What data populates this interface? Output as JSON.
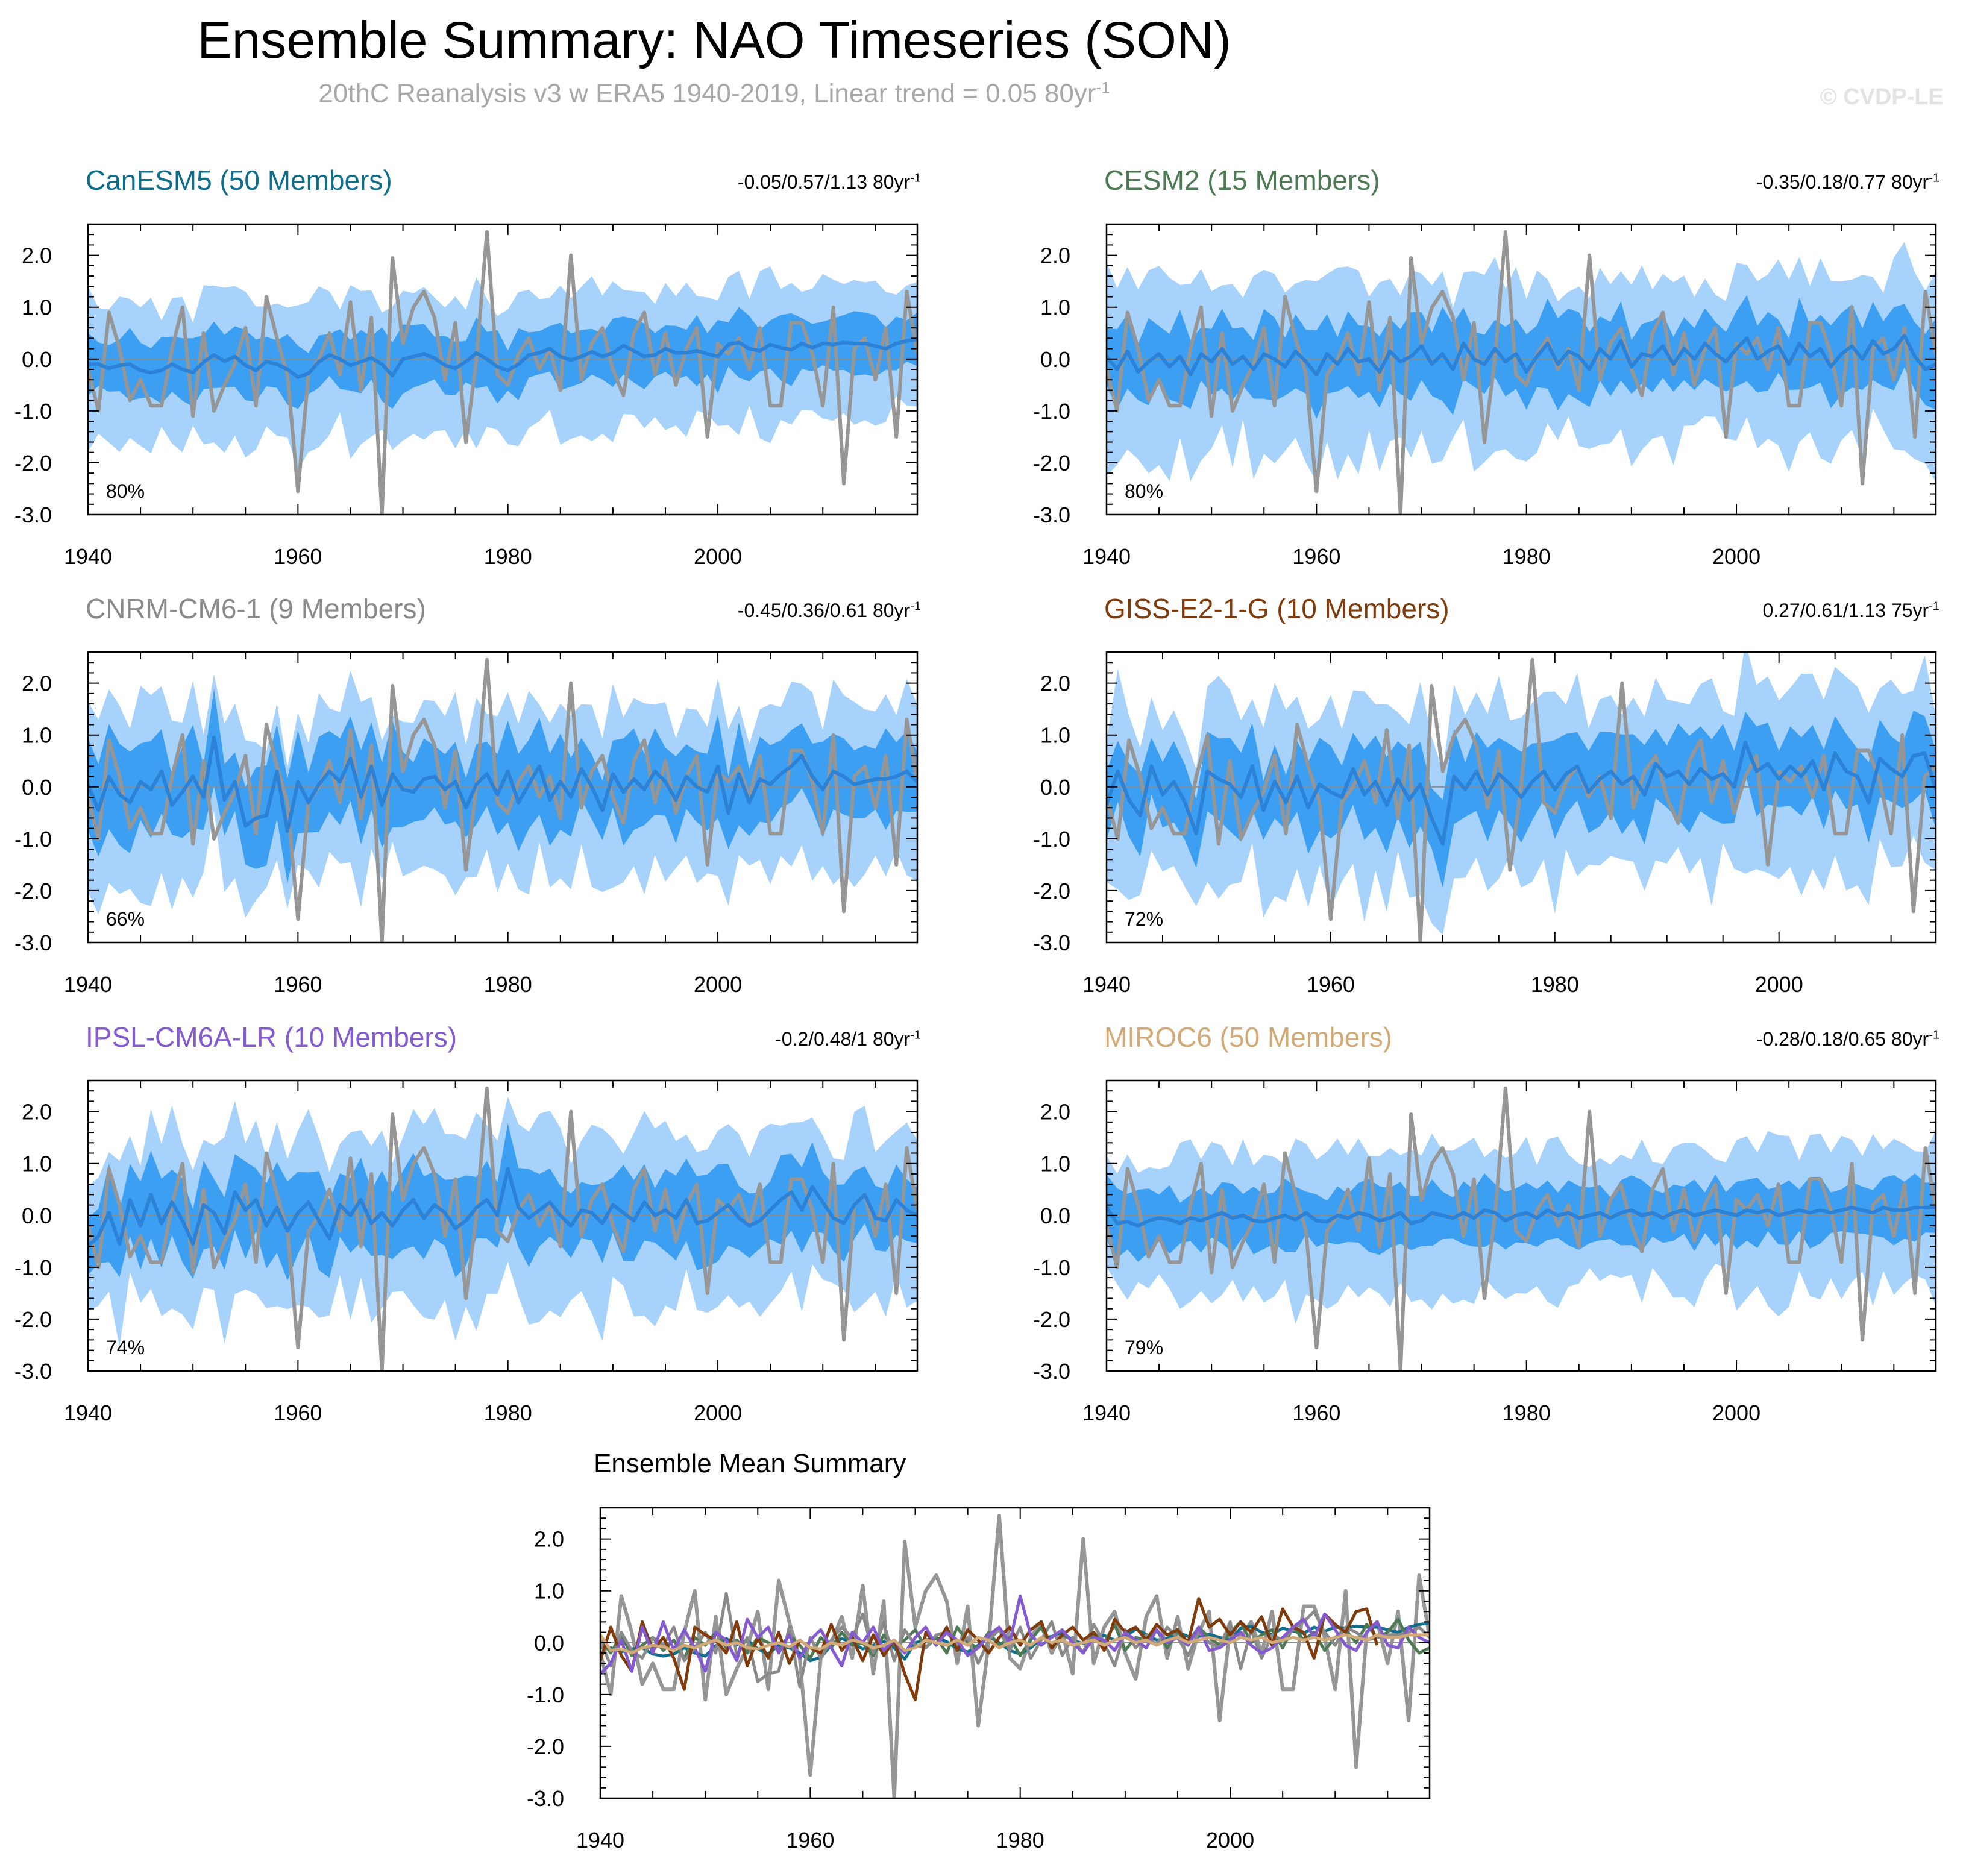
{
  "title": "Ensemble Summary: NAO Timeseries (SON)",
  "subtitle_main": "20thC Reanalysis v3 w ERA5 1940-2019, Linear trend = 0.05 80yr",
  "subtitle_exp": "-1",
  "watermark": "© CVDP-LE",
  "colors": {
    "outer_band": "#a6d2fb",
    "inner_band": "#3d9ff1",
    "mean_line": "#2c82d6",
    "obs_line": "#969696",
    "zero_line": "#8c8c8c"
  },
  "chart_data": [
    {
      "type": "line",
      "title": "CanESM5 (50 Members)",
      "title_color": "#116e8a",
      "stats": "-0.05/0.57/1.13 80yr",
      "stats_exp": "-1",
      "percent_label": "80%",
      "xlim": [
        1940,
        2019
      ],
      "ylim": [
        -3.0,
        2.6
      ],
      "xticks": [
        "1940",
        "1960",
        "1980",
        "2000"
      ],
      "yticks": [
        "2.0",
        "1.0",
        "0.0",
        "-1.0",
        "-2.0",
        "-3.0"
      ],
      "band_amp": [
        0.55,
        1.25
      ],
      "seed": 11,
      "mean_values": [
        -0.1,
        -0.1,
        -0.18,
        -0.12,
        -0.1,
        -0.22,
        -0.26,
        -0.22,
        -0.1,
        -0.2,
        -0.26,
        -0.06,
        0.08,
        -0.04,
        0.05,
        -0.12,
        -0.22,
        -0.05,
        -0.1,
        -0.2,
        -0.35,
        -0.28,
        -0.05,
        0.08,
        0.0,
        -0.12,
        -0.05,
        0.02,
        -0.1,
        -0.32,
        0.0,
        0.05,
        0.1,
        0.02,
        -0.12,
        -0.18,
        -0.05,
        0.12,
        0.0,
        -0.15,
        -0.22,
        -0.1,
        0.08,
        0.12,
        0.2,
        0.05,
        -0.02,
        0.05,
        0.14,
        0.05,
        0.12,
        0.26,
        0.16,
        0.05,
        0.08,
        0.2,
        0.12,
        0.12,
        0.16,
        0.1,
        0.05,
        0.28,
        0.32,
        0.2,
        0.16,
        0.28,
        0.22,
        0.18,
        0.3,
        0.22,
        0.3,
        0.28,
        0.32,
        0.3,
        0.3,
        0.25,
        0.2,
        0.3,
        0.35,
        0.38
      ]
    },
    {
      "type": "line",
      "title": "CESM2 (15 Members)",
      "title_color": "#4d7a55",
      "stats": "-0.35/0.18/0.77 80yr",
      "stats_exp": "-1",
      "percent_label": "80%",
      "xlim": [
        1940,
        2019
      ],
      "ylim": [
        -3.0,
        2.6
      ],
      "xticks": [
        "1940",
        "1960",
        "1980",
        "2000"
      ],
      "yticks": [
        "2.0",
        "1.0",
        "0.0",
        "-1.0",
        "-2.0",
        "-3.0"
      ],
      "band_amp": [
        0.7,
        1.5
      ],
      "seed": 23,
      "mean_values": [
        0.05,
        -0.2,
        0.15,
        -0.25,
        -0.05,
        0.1,
        -0.15,
        0.05,
        -0.3,
        0.1,
        -0.05,
        0.2,
        -0.1,
        0.05,
        -0.2,
        0.1,
        0.0,
        -0.15,
        0.15,
        -0.05,
        -0.3,
        0.1,
        -0.1,
        0.2,
        -0.05,
        0.0,
        -0.25,
        0.15,
        -0.05,
        0.05,
        0.25,
        -0.1,
        0.1,
        -0.2,
        0.3,
        0.0,
        -0.1,
        0.2,
        -0.05,
        0.1,
        -0.25,
        0.05,
        0.3,
        -0.1,
        0.15,
        0.05,
        -0.2,
        0.2,
        0.0,
        0.35,
        -0.15,
        0.1,
        0.05,
        0.25,
        -0.1,
        0.2,
        0.0,
        0.3,
        0.1,
        -0.05,
        0.2,
        0.4,
        0.0,
        0.15,
        0.25,
        -0.1,
        0.3,
        0.05,
        0.2,
        -0.15,
        0.1,
        0.25,
        0.0,
        0.35,
        0.1,
        0.2,
        0.45,
        0.05,
        -0.2,
        -0.1
      ]
    },
    {
      "type": "line",
      "title": "CNRM-CM6-1 (9 Members)",
      "title_color": "#8a8a8a",
      "stats": "-0.45/0.36/0.61 80yr",
      "stats_exp": "-1",
      "percent_label": "66%",
      "xlim": [
        1940,
        2019
      ],
      "ylim": [
        -3.0,
        2.6
      ],
      "xticks": [
        "1940",
        "1960",
        "1980",
        "2000"
      ],
      "yticks": [
        "2.0",
        "1.0",
        "0.0",
        "-1.0",
        "-2.0",
        "-3.0"
      ],
      "band_amp": [
        0.8,
        1.5
      ],
      "seed": 37,
      "mean_values": [
        0.05,
        -0.45,
        0.2,
        -0.15,
        -0.3,
        0.1,
        -0.05,
        0.3,
        -0.35,
        -0.1,
        0.2,
        -0.2,
        0.95,
        -0.25,
        0.1,
        -0.75,
        -0.6,
        -0.55,
        0.3,
        -0.85,
        0.1,
        -0.3,
        0.05,
        0.3,
        0.1,
        0.55,
        -0.2,
        0.4,
        -0.35,
        0.25,
        -0.05,
        -0.1,
        0.15,
        0.2,
        -0.05,
        0.1,
        -0.4,
        0.05,
        0.25,
        -0.15,
        0.3,
        -0.3,
        0.05,
        0.4,
        -0.25,
        0.1,
        -0.2,
        0.35,
        0.0,
        -0.45,
        0.25,
        -0.1,
        0.15,
        -0.05,
        0.3,
        0.1,
        -0.25,
        0.2,
        0.0,
        -0.1,
        0.4,
        -0.5,
        0.25,
        -0.3,
        0.15,
        0.05,
        0.25,
        0.4,
        0.6,
        0.2,
        -0.05,
        0.3,
        0.2,
        0.05,
        0.1,
        0.15,
        0.15,
        0.2,
        0.3,
        0.1
      ]
    },
    {
      "type": "line",
      "title": "GISS-E2-1-G (10 Members)",
      "title_color": "#7f3b0c",
      "stats": "0.27/0.61/1.13 75yr",
      "stats_exp": "-1",
      "percent_label": "72%",
      "xlim": [
        1940,
        2014
      ],
      "ylim": [
        -3.0,
        2.6
      ],
      "xticks": [
        "1940",
        "1960",
        "1980",
        "2000"
      ],
      "yticks": [
        "2.0",
        "1.0",
        "0.0",
        "-1.0",
        "-2.0",
        "-3.0"
      ],
      "band_amp": [
        0.75,
        1.6
      ],
      "seed": 53,
      "mean_values": [
        -0.35,
        0.3,
        -0.25,
        -0.55,
        0.4,
        -0.15,
        0.1,
        -0.3,
        -0.9,
        0.3,
        0.15,
        0.05,
        -0.2,
        0.4,
        -0.45,
        0.1,
        -0.3,
        0.2,
        -0.4,
        0.05,
        -0.1,
        -0.2,
        0.35,
        -0.15,
        0.1,
        -0.35,
        0.15,
        -0.25,
        0.05,
        -0.6,
        -1.1,
        0.2,
        -0.05,
        0.3,
        -0.15,
        0.25,
        0.05,
        -0.2,
        0.1,
        0.3,
        -0.05,
        0.25,
        0.4,
        -0.1,
        0.15,
        0.3,
        0.05,
        0.2,
        -0.15,
        0.45,
        0.2,
        0.3,
        0.05,
        0.35,
        0.15,
        0.25,
        0.0,
        0.85,
        0.3,
        0.45,
        0.15,
        0.4,
        0.2,
        0.5,
        -0.05,
        0.65,
        0.3,
        0.2,
        -0.3,
        0.55,
        0.35,
        0.2,
        0.6,
        0.65,
        -0.05
      ]
    },
    {
      "type": "line",
      "title": "IPSL-CM6A-LR (10 Members)",
      "title_color": "#845ad0",
      "stats": "-0.2/0.48/1 80yr",
      "stats_exp": "-1",
      "percent_label": "74%",
      "xlim": [
        1940,
        2019
      ],
      "ylim": [
        -3.0,
        2.6
      ],
      "xticks": [
        "1940",
        "1960",
        "1980",
        "2000"
      ],
      "yticks": [
        "2.0",
        "1.0",
        "0.0",
        "-1.0",
        "-2.0",
        "-3.0"
      ],
      "band_amp": [
        0.75,
        1.5
      ],
      "seed": 71,
      "mean_values": [
        -0.6,
        -0.4,
        0.05,
        -0.55,
        0.3,
        -0.2,
        0.4,
        -0.15,
        0.25,
        -0.1,
        -0.55,
        0.2,
        0.05,
        -0.35,
        0.45,
        0.1,
        0.3,
        -0.2,
        0.15,
        -0.3,
        0.05,
        0.25,
        -0.1,
        -0.45,
        0.2,
        0.0,
        0.3,
        -0.15,
        0.05,
        -0.2,
        0.1,
        0.3,
        -0.05,
        0.2,
        0.05,
        -0.25,
        -0.1,
        0.15,
        0.3,
        0.0,
        0.9,
        0.15,
        -0.05,
        0.1,
        0.25,
        0.0,
        -0.2,
        0.1,
        0.05,
        -0.15,
        0.2,
        0.05,
        -0.1,
        0.25,
        0.0,
        0.1,
        -0.05,
        0.3,
        -0.15,
        -0.1,
        0.05,
        0.2,
        -0.05,
        -0.2,
        -0.1,
        0.1,
        0.3,
        0.45,
        0.1,
        0.55,
        0.25,
        -0.05,
        -0.15,
        0.2,
        0.4,
        -0.05,
        -0.1,
        0.3,
        0.1,
        0.0
      ]
    },
    {
      "type": "line",
      "title": "MIROC6 (50 Members)",
      "title_color": "#d2aa78",
      "stats": "-0.28/0.18/0.65 80yr",
      "stats_exp": "-1",
      "percent_label": "79%",
      "xlim": [
        1940,
        2019
      ],
      "ylim": [
        -3.0,
        2.6
      ],
      "xticks": [
        "1940",
        "1960",
        "1980",
        "2000"
      ],
      "yticks": [
        "2.0",
        "1.0",
        "0.0",
        "-1.0",
        "-2.0",
        "-3.0"
      ],
      "band_amp": [
        0.55,
        1.25
      ],
      "seed": 89,
      "mean_values": [
        0.15,
        -0.15,
        -0.12,
        -0.2,
        -0.1,
        -0.05,
        -0.08,
        -0.15,
        -0.05,
        -0.1,
        -0.02,
        0.05,
        -0.05,
        0.0,
        -0.1,
        -0.12,
        -0.05,
        0.0,
        -0.08,
        0.05,
        -0.1,
        -0.12,
        0.0,
        -0.05,
        0.05,
        0.0,
        -0.1,
        -0.05,
        0.05,
        -0.15,
        -0.1,
        0.05,
        0.0,
        -0.05,
        0.05,
        -0.05,
        0.1,
        0.05,
        -0.1,
        0.0,
        0.05,
        -0.05,
        0.1,
        0.0,
        0.05,
        -0.05,
        0.0,
        0.05,
        -0.05,
        0.05,
        0.1,
        0.0,
        0.05,
        -0.05,
        0.05,
        0.1,
        0.0,
        0.05,
        0.1,
        0.05,
        0.0,
        0.1,
        0.05,
        0.1,
        0.0,
        0.05,
        0.1,
        0.05,
        0.1,
        0.05,
        0.1,
        0.15,
        0.1,
        0.05,
        0.15,
        0.1,
        0.1,
        0.15,
        0.15,
        0.15
      ]
    },
    {
      "type": "line",
      "title": "Ensemble Mean Summary",
      "title_color": "#000000",
      "xlim": [
        1940,
        2019
      ],
      "ylim": [
        -3.0,
        2.6
      ],
      "xticks": [
        "1940",
        "1960",
        "1980",
        "2000"
      ],
      "yticks": [
        "2.0",
        "1.0",
        "0.0",
        "-1.0",
        "-2.0",
        "-3.0"
      ],
      "series": [
        {
          "name": "CanESM5",
          "color": "#116e8a",
          "source": 0
        },
        {
          "name": "CESM2",
          "color": "#4d7a55",
          "source": 1
        },
        {
          "name": "CNRM-CM6-1",
          "color": "#8a8a8a",
          "source": 2
        },
        {
          "name": "GISS-E2-1-G",
          "color": "#7f3b0c",
          "source": 3
        },
        {
          "name": "IPSL-CM6A-LR",
          "color": "#845ad0",
          "source": 4
        },
        {
          "name": "MIROC6",
          "color": "#d2aa78",
          "source": 5
        }
      ]
    }
  ],
  "observations": {
    "name": "20thC Reanalysis v3 w ERA5",
    "years": [
      1940,
      2019
    ],
    "values": [
      -0.2,
      -1.0,
      0.9,
      0.2,
      -0.8,
      -0.4,
      -0.9,
      -0.9,
      0.2,
      1.0,
      -1.1,
      0.5,
      -1.0,
      -0.5,
      -0.1,
      0.6,
      -0.9,
      1.2,
      0.4,
      -0.3,
      -2.55,
      -0.3,
      0.0,
      0.5,
      -0.3,
      1.1,
      -0.6,
      0.8,
      -3.0,
      1.95,
      0.3,
      1.0,
      1.3,
      0.8,
      -0.4,
      0.7,
      -1.6,
      0.0,
      2.45,
      -0.3,
      -0.5,
      0.1,
      0.4,
      -0.2,
      0.2,
      -0.6,
      2.0,
      -0.4,
      0.3,
      0.6,
      -0.2,
      -0.7,
      0.5,
      0.9,
      -0.3,
      0.5,
      -0.5,
      0.2,
      0.6,
      -1.5,
      0.3,
      0.1,
      0.4,
      -0.2,
      0.6,
      -0.9,
      -0.9,
      0.7,
      0.7,
      0.1,
      -0.9,
      1.0,
      -2.4,
      0.2,
      0.4,
      -0.4,
      0.6,
      -1.5,
      1.3,
      0.1
    ]
  }
}
